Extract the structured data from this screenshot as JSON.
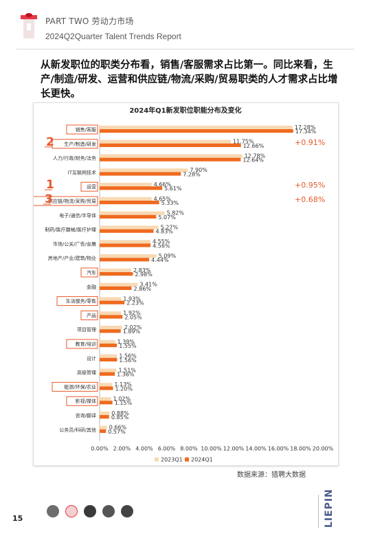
{
  "header": {
    "section": "PART TWO 劳动力市场",
    "report": "2024Q2Quarter Talent Trends Report"
  },
  "intro_text": "从新发职位的职类分布看，销售/客服需求占比第一。同比来看，生产/制造/研发、运营和供应链/物流/采购/贸易职类的人才需求占比增长更快。",
  "source": "数据来源：猎聘大数据",
  "page_number": "15",
  "brand": "LIEPIN",
  "colors": {
    "series_2023": "#f8d9b3",
    "series_2024": "#ef6a1f",
    "accent": "#e8582a"
  },
  "chart_data": {
    "type": "bar",
    "orientation": "horizontal",
    "title": "2024年Q1新发职位职能分布及变化",
    "categories": [
      "销售/客服",
      "生产/制造/研发",
      "人力/行政/财务/法务",
      "IT互联网技术",
      "运营",
      "供应链/物流/采购/贸易",
      "电子/通信/半导体",
      "制药/医疗器械/医疗护理",
      "市场/公关/广告/会展",
      "房地产/产业/建筑/物业",
      "汽车",
      "金融",
      "生活服务/零售",
      "产品",
      "项目管理",
      "教育/培训",
      "设计",
      "高级管理",
      "能源/环保/农业",
      "影视/媒体",
      "咨询/翻译",
      "公务员/科研/其他"
    ],
    "series": [
      {
        "name": "2023Q1",
        "values": [
          17.28,
          11.75,
          12.78,
          7.9,
          4.66,
          4.65,
          5.82,
          5.27,
          4.55,
          5.09,
          2.83,
          3.41,
          1.93,
          1.92,
          2.02,
          1.39,
          1.56,
          1.51,
          1.13,
          1.02,
          0.88,
          0.66
        ]
      },
      {
        "name": "2024Q1",
        "values": [
          17.34,
          12.66,
          12.64,
          7.28,
          5.61,
          5.33,
          5.07,
          4.83,
          4.56,
          4.44,
          2.98,
          2.86,
          2.23,
          2.05,
          1.89,
          1.55,
          1.56,
          1.36,
          1.2,
          1.15,
          0.85,
          0.57
        ]
      }
    ],
    "data_labels_2023": [
      "17.28%",
      "11.75%",
      "12.78%",
      "7.90%",
      "4.66%",
      "4.65%",
      "5.82%",
      "5.27%",
      "4.55%",
      "5.09%",
      "2.83%",
      "3.41%",
      "1.93%",
      "1.92%",
      "2.02%",
      "1.39%",
      "1.56%",
      "1.51%",
      "1.13%",
      "1.02%",
      "0.88%",
      "0.66%"
    ],
    "data_labels_2024": [
      "17.34%",
      "12.66%",
      "12.64%",
      "7.28%",
      "5.61%",
      "5.33%",
      "5.07%",
      "4.83%",
      "4.56%",
      "4.44%",
      "2.98%",
      "2.86%",
      "2.23%",
      "2.05%",
      "1.89%",
      "1.55%",
      "1.56%",
      "1.36%",
      "1.20%",
      "1.15%",
      "0.85%",
      "0.57%"
    ],
    "xlim": [
      0,
      20
    ],
    "x_ticks": [
      "0.00%",
      "2.00%",
      "4.00%",
      "6.00%",
      "8.00%",
      "10.00%",
      "12.00%",
      "14.00%",
      "16.00%",
      "18.00%",
      "20.00%"
    ],
    "legend": [
      "2023Q1",
      "2024Q1"
    ],
    "legend_position": "bottom",
    "highlighted_categories": [
      "销售/客服",
      "生产/制造/研发",
      "运营",
      "供应链/物流/采购/贸易",
      "汽车",
      "生活服务/零售",
      "产品",
      "教育/培训",
      "能源/环保/农业",
      "影视/媒体"
    ],
    "rank_markers": [
      {
        "category": "生产/制造/研发",
        "rank": "2"
      },
      {
        "category": "运营",
        "rank": "1"
      },
      {
        "category": "供应链/物流/采购/贸易",
        "rank": "3"
      }
    ],
    "change_annotations": [
      {
        "category": "生产/制造/研发",
        "text": "+0.91%"
      },
      {
        "category": "运营",
        "text": "+0.95%"
      },
      {
        "category": "供应链/物流/采购/贸易",
        "text": "+0.68%"
      }
    ]
  }
}
